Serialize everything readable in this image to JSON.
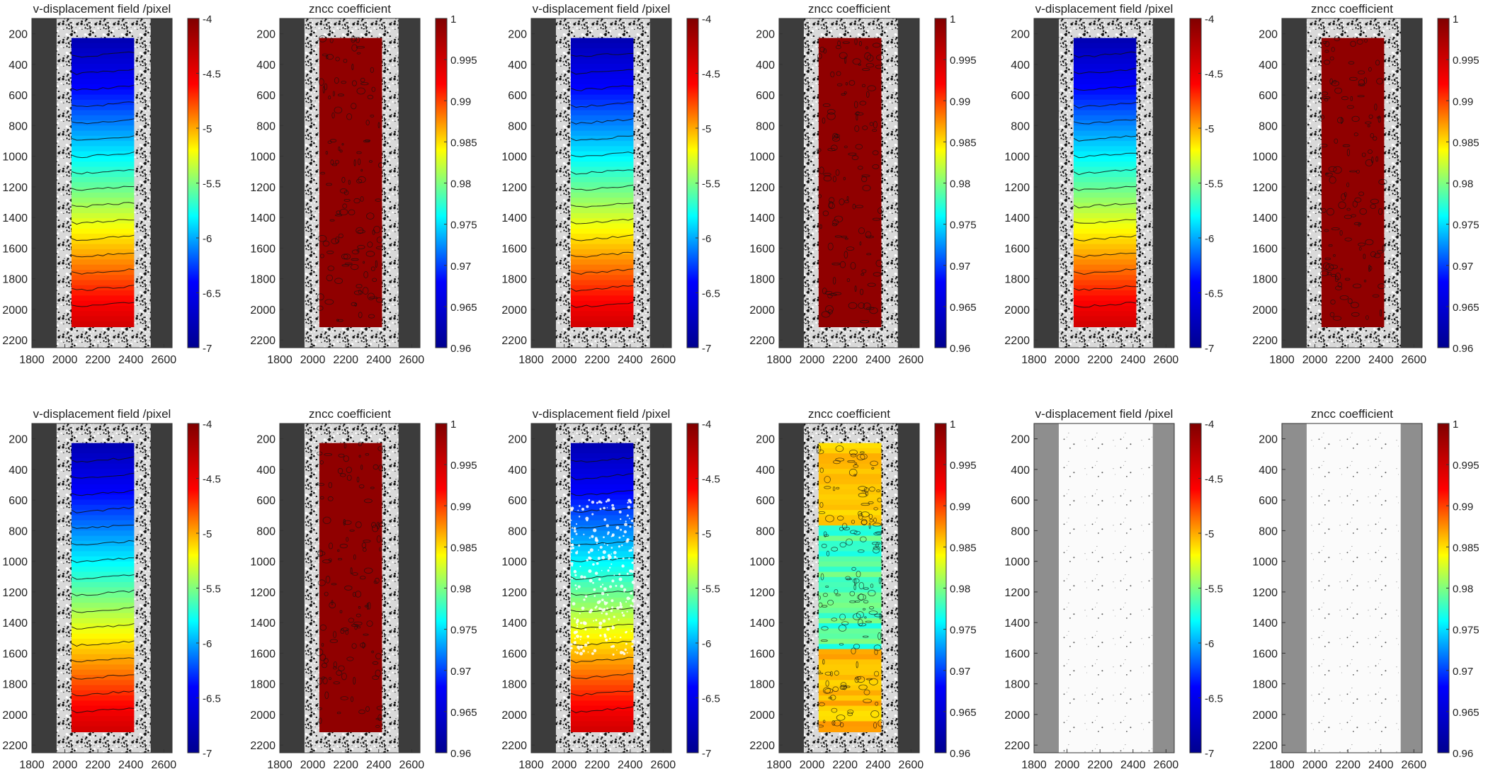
{
  "colormap": [
    "#00008f",
    "#0000ff",
    "#00ffff",
    "#ffff00",
    "#ff0000",
    "#800000"
  ],
  "labels": {
    "v_title": "v-displacement field /pixel",
    "z_title": "zncc coefficient"
  },
  "axes": {
    "x_ticks": [
      "1800",
      "2000",
      "2200",
      "2400",
      "2600"
    ],
    "y_ticks": [
      "200",
      "400",
      "600",
      "800",
      "1000",
      "1200",
      "1400",
      "1600",
      "1800",
      "2000",
      "2200"
    ]
  },
  "colorbars": {
    "v_ticks": [
      "-4",
      "-4.5",
      "-5",
      "-5.5",
      "-6",
      "-6.5",
      "-7"
    ],
    "z_ticks": [
      "1",
      "0.995",
      "0.99",
      "0.985",
      "0.98",
      "0.975",
      "0.97",
      "0.965",
      "0.96"
    ]
  },
  "chart_data": [
    {
      "type": "heatmap",
      "title": "v-displacement field /pixel",
      "field": "v-displacement",
      "xlim": [
        1800,
        2650
      ],
      "ylim": [
        2250,
        100
      ],
      "clim": [
        -7,
        -4
      ],
      "roi": {
        "x": [
          2040,
          2420
        ],
        "y": [
          230,
          2080
        ]
      },
      "top_value": -6.8,
      "bottom_value": -4.4,
      "condition": "smooth"
    },
    {
      "type": "heatmap",
      "title": "zncc coefficient",
      "field": "zncc",
      "xlim": [
        1800,
        2650
      ],
      "ylim": [
        2250,
        100
      ],
      "clim": [
        0.96,
        1
      ],
      "roi": {
        "x": [
          2040,
          2420
        ],
        "y": [
          230,
          2080
        ]
      },
      "typical_value": 0.999,
      "condition": "smooth"
    },
    {
      "type": "heatmap",
      "title": "v-displacement field /pixel",
      "field": "v-displacement",
      "xlim": [
        1800,
        2650
      ],
      "ylim": [
        2250,
        100
      ],
      "clim": [
        -7,
        -4
      ],
      "roi": {
        "x": [
          2040,
          2420
        ],
        "y": [
          230,
          2080
        ]
      },
      "top_value": -6.8,
      "bottom_value": -4.4,
      "condition": "smooth"
    },
    {
      "type": "heatmap",
      "title": "zncc coefficient",
      "field": "zncc",
      "xlim": [
        1800,
        2650
      ],
      "ylim": [
        2250,
        100
      ],
      "clim": [
        0.96,
        1
      ],
      "roi": {
        "x": [
          2040,
          2420
        ],
        "y": [
          230,
          2080
        ]
      },
      "typical_value": 0.999,
      "condition": "smooth"
    },
    {
      "type": "heatmap",
      "title": "v-displacement field /pixel",
      "field": "v-displacement",
      "xlim": [
        1800,
        2650
      ],
      "ylim": [
        2250,
        100
      ],
      "clim": [
        -7,
        -4
      ],
      "roi": {
        "x": [
          2040,
          2420
        ],
        "y": [
          230,
          2080
        ]
      },
      "top_value": -6.8,
      "bottom_value": -4.4,
      "condition": "smooth"
    },
    {
      "type": "heatmap",
      "title": "zncc coefficient",
      "field": "zncc",
      "xlim": [
        1800,
        2650
      ],
      "ylim": [
        2250,
        100
      ],
      "clim": [
        0.96,
        1
      ],
      "roi": {
        "x": [
          2040,
          2420
        ],
        "y": [
          230,
          2080
        ]
      },
      "typical_value": 0.999,
      "condition": "smooth"
    },
    {
      "type": "heatmap",
      "title": "v-displacement field /pixel",
      "field": "v-displacement",
      "xlim": [
        1800,
        2650
      ],
      "ylim": [
        2250,
        100
      ],
      "clim": [
        -7,
        -4
      ],
      "roi": {
        "x": [
          2040,
          2420
        ],
        "y": [
          230,
          2080
        ]
      },
      "top_value": -6.8,
      "bottom_value": -4.4,
      "condition": "smooth"
    },
    {
      "type": "heatmap",
      "title": "zncc coefficient",
      "field": "zncc",
      "xlim": [
        1800,
        2650
      ],
      "ylim": [
        2250,
        100
      ],
      "clim": [
        0.96,
        1
      ],
      "roi": {
        "x": [
          2040,
          2420
        ],
        "y": [
          230,
          2080
        ]
      },
      "typical_value": 0.999,
      "condition": "smooth"
    },
    {
      "type": "heatmap",
      "title": "v-displacement field /pixel",
      "field": "v-displacement",
      "xlim": [
        1800,
        2650
      ],
      "ylim": [
        2250,
        100
      ],
      "clim": [
        -7,
        -4
      ],
      "roi": {
        "x": [
          2040,
          2420
        ],
        "y": [
          230,
          2080
        ]
      },
      "top_value": -6.8,
      "bottom_value": -4.4,
      "condition": "noisy"
    },
    {
      "type": "heatmap",
      "title": "zncc coefficient",
      "field": "zncc",
      "xlim": [
        1800,
        2650
      ],
      "ylim": [
        2250,
        100
      ],
      "clim": [
        0.96,
        1
      ],
      "roi": {
        "x": [
          2040,
          2420
        ],
        "y": [
          230,
          2080
        ]
      },
      "typical_value": 0.985,
      "condition": "noisy"
    },
    {
      "type": "heatmap",
      "title": "v-displacement field /pixel",
      "field": "v-displacement",
      "xlim": [
        1800,
        2650
      ],
      "ylim": [
        2250,
        100
      ],
      "clim": [
        -7,
        -4
      ],
      "roi": null,
      "condition": "blank"
    },
    {
      "type": "heatmap",
      "title": "zncc coefficient",
      "field": "zncc",
      "xlim": [
        1800,
        2650
      ],
      "ylim": [
        2250,
        100
      ],
      "clim": [
        0.96,
        1
      ],
      "roi": null,
      "condition": "blank"
    }
  ]
}
